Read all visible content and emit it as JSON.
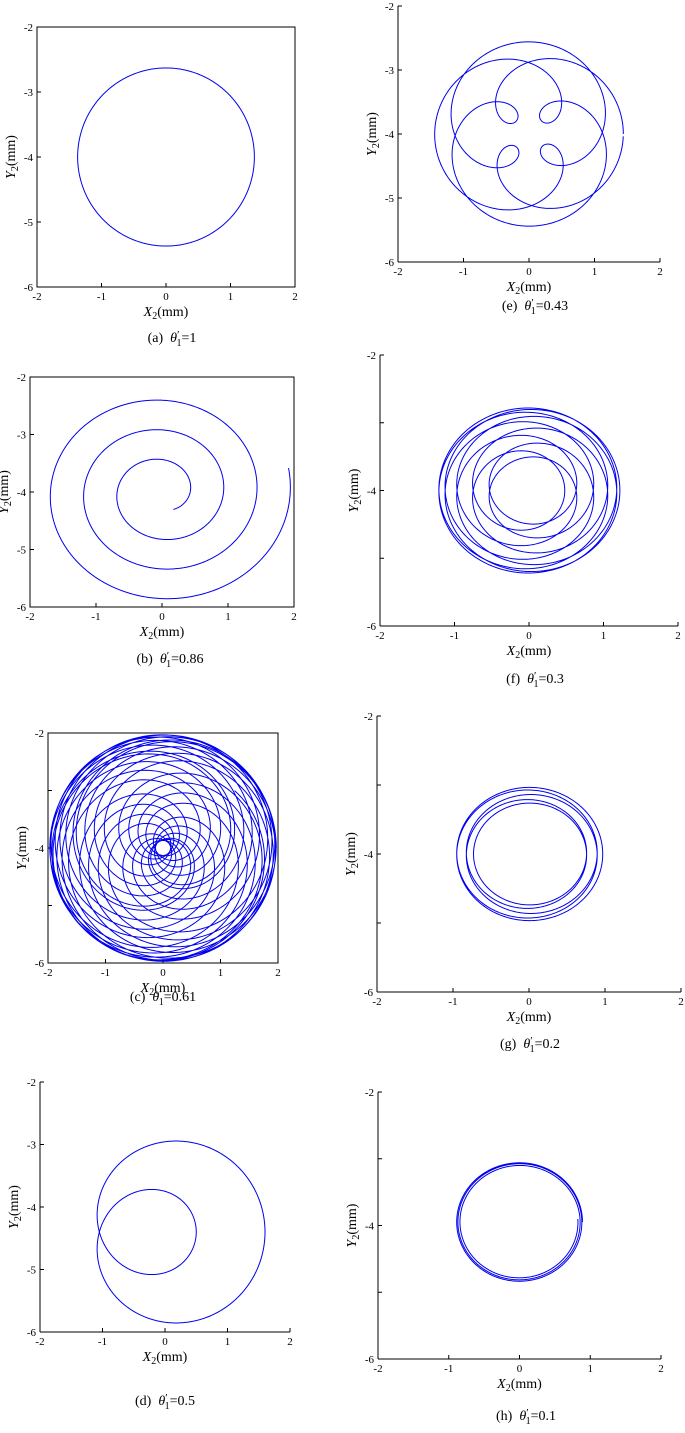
{
  "figure": {
    "panels": [
      {
        "id": "a",
        "caption_letter": "(a)",
        "caption_sym": "θ",
        "caption_prime": "′",
        "caption_sub": "1",
        "caption_value": "=1"
      },
      {
        "id": "b",
        "caption_letter": "(b)",
        "caption_sym": "θ",
        "caption_prime": "′",
        "caption_sub": "1",
        "caption_value": "=0.86"
      },
      {
        "id": "c",
        "caption_letter": "(c)",
        "caption_sym": "θ",
        "caption_prime": "′",
        "caption_sub": "1",
        "caption_value": "=0.61"
      },
      {
        "id": "d",
        "caption_letter": "(d)",
        "caption_sym": "θ",
        "caption_prime": "′",
        "caption_sub": "1",
        "caption_value": "=0.5"
      },
      {
        "id": "e",
        "caption_letter": "(e)",
        "caption_sym": "θ",
        "caption_prime": "′",
        "caption_sub": "1",
        "caption_value": "=0.43"
      },
      {
        "id": "f",
        "caption_letter": "(f)",
        "caption_sym": "θ",
        "caption_prime": "′",
        "caption_sub": "1",
        "caption_value": "=0.3"
      },
      {
        "id": "g",
        "caption_letter": "(g)",
        "caption_sym": "θ",
        "caption_prime": "′",
        "caption_sub": "1",
        "caption_value": "=0.2"
      },
      {
        "id": "h",
        "caption_letter": "(h)",
        "caption_sym": "θ",
        "caption_prime": "′",
        "caption_sub": "1",
        "caption_value": "=0.1"
      }
    ]
  },
  "chart_data": [
    {
      "type": "line",
      "panel": "a",
      "xlabel_var": "X",
      "xlabel_sub": "2",
      "xlabel_unit": "(mm)",
      "ylabel_var": "Y",
      "ylabel_sub": "2",
      "ylabel_unit": "(mm)",
      "xlim": [
        -2,
        2
      ],
      "ylim": [
        -6,
        -2
      ],
      "xticks": [
        "-2",
        "-1",
        "0",
        "1",
        "2"
      ],
      "yticks": [
        "-6",
        "-5",
        "-4",
        "-3",
        "-2"
      ],
      "line_color": "#0000ee",
      "frame": "box",
      "grid": false,
      "trajectory": {
        "center": [
          0,
          -4
        ],
        "radius": 1.37,
        "waves": []
      }
    },
    {
      "type": "line",
      "panel": "b",
      "xlabel_var": "X",
      "xlabel_sub": "2",
      "xlabel_unit": "(mm)",
      "ylabel_var": "Y",
      "ylabel_sub": "2",
      "ylabel_unit": "(mm)",
      "xlim": [
        -2,
        2
      ],
      "ylim": [
        -6,
        -2
      ],
      "xticks": [
        "-2",
        "-1",
        "0",
        "1",
        "2"
      ],
      "yticks": [
        "-6",
        "-5",
        "-4",
        "-3",
        "-2"
      ],
      "line_color": "#0000ee",
      "frame": "box",
      "grid": false,
      "trajectory": {
        "center": [
          0,
          -4
        ],
        "spiral_start_radius": 0.35,
        "spiral_end_radius": 2.0,
        "start_angle_deg": -60,
        "turns": 3.2
      }
    },
    {
      "type": "line",
      "panel": "c",
      "xlabel_var": "X",
      "xlabel_sub": "2",
      "xlabel_unit": "(mm)",
      "ylabel_var": "Y",
      "ylabel_sub": "2",
      "ylabel_unit": "(mm)",
      "xlim": [
        -2,
        2
      ],
      "ylim": [
        -6,
        -2
      ],
      "xticks": [
        "-2",
        "-1",
        "0",
        "1",
        "2"
      ],
      "yticks": [
        "-6",
        "",
        "-4",
        "",
        "-2"
      ],
      "line_color": "#0000ee",
      "frame": "box",
      "grid": false,
      "trajectory": {
        "center": [
          0,
          -4
        ],
        "circle_radius": 0.92,
        "orbit_radius": 1.05,
        "phase_ratio": 1.61,
        "turns": 20
      }
    },
    {
      "type": "line",
      "panel": "d",
      "xlabel_var": "X",
      "xlabel_sub": "2",
      "xlabel_unit": "(mm)",
      "ylabel_var": "Y",
      "ylabel_sub": "2",
      "ylabel_unit": "(mm)",
      "xlim": [
        -2,
        2
      ],
      "ylim": [
        -6,
        -2
      ],
      "xticks": [
        "-2",
        "-1",
        "0",
        "1",
        "2"
      ],
      "yticks": [
        "-6",
        "-5",
        "-4",
        "-3",
        "-2"
      ],
      "line_color": "#0000ee",
      "frame": "left-bottom",
      "grid": false,
      "trajectory": {
        "center": [
          0,
          -4.4
        ],
        "circle_radius": 0.55,
        "orbit_radius": 1.05,
        "phase_ratio": 2.0,
        "turns": 1
      }
    },
    {
      "type": "line",
      "panel": "e",
      "xlabel_var": "X",
      "xlabel_sub": "2",
      "xlabel_unit": "(mm)",
      "ylabel_var": "Y",
      "ylabel_sub": "2",
      "ylabel_unit": "(mm)",
      "xlim": [
        -2,
        2
      ],
      "ylim": [
        -6,
        -2
      ],
      "xticks": [
        "-2",
        "-1",
        "0",
        "1",
        "2"
      ],
      "yticks": [
        "-6",
        "-5",
        "-4",
        "-3",
        "-2"
      ],
      "line_color": "#0000ee",
      "frame": "left-bottom",
      "grid": false,
      "trajectory": {
        "center": [
          0,
          -4
        ],
        "circle_radius": 0.86,
        "orbit_radius": 0.58,
        "phase_ratio": 2.33,
        "turns": 3
      }
    },
    {
      "type": "line",
      "panel": "f",
      "xlabel_var": "X",
      "xlabel_sub": "2",
      "xlabel_unit": "(mm)",
      "ylabel_var": "Y",
      "ylabel_sub": "2",
      "ylabel_unit": "(mm)",
      "xlim": [
        -2,
        2
      ],
      "ylim": [
        -6,
        -2
      ],
      "xticks": [
        "-2",
        "-1",
        "0",
        "1",
        "2"
      ],
      "yticks": [
        "-6",
        "",
        "-4",
        "",
        "-2"
      ],
      "line_color": "#0000ee",
      "frame": "left-bottom",
      "grid": false,
      "trajectory": {
        "center": [
          0,
          -4
        ],
        "circle_radius": 0.85,
        "orbit_radius": 0.37,
        "phase_ratio": 1.3,
        "turns": 30
      }
    },
    {
      "type": "line",
      "panel": "g",
      "xlabel_var": "X",
      "xlabel_sub": "2",
      "xlabel_unit": "(mm)",
      "ylabel_var": "Y",
      "ylabel_sub": "2",
      "ylabel_unit": "(mm)",
      "xlim": [
        -2,
        2
      ],
      "ylim": [
        -6,
        -2
      ],
      "xticks": [
        "-2",
        "-1",
        "0",
        "1",
        "2"
      ],
      "yticks": [
        "-6",
        "",
        "-4",
        "",
        "-2"
      ],
      "line_color": "#0000ee",
      "frame": "left-bottom",
      "grid": false,
      "trajectory": {
        "center": [
          0,
          -4
        ],
        "circle_radius": 0.85,
        "orbit_radius": 0.12,
        "phase_ratio": 1.2,
        "turns": 5
      }
    },
    {
      "type": "line",
      "panel": "h",
      "xlabel_var": "X",
      "xlabel_sub": "2",
      "xlabel_unit": "(mm)",
      "ylabel_var": "Y",
      "ylabel_sub": "2",
      "ylabel_unit": "(mm)",
      "xlim": [
        -2,
        2
      ],
      "ylim": [
        -6,
        -2
      ],
      "xticks": [
        "-2",
        "-1",
        "0",
        "1",
        "2"
      ],
      "yticks": [
        "-6",
        "",
        "-4",
        "",
        "-2"
      ],
      "line_color": "#0000ee",
      "frame": "left-bottom",
      "grid": false,
      "trajectory": {
        "center": [
          0,
          -3.95
        ],
        "circle_radius": 0.84,
        "orbit_radius": 0.05,
        "phase_ratio": 1.1,
        "turns": 3
      }
    }
  ]
}
